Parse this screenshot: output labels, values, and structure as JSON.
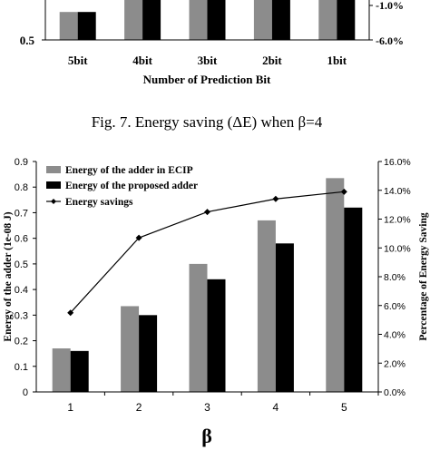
{
  "chart_data": [
    {
      "type": "bar",
      "partial": true,
      "categories": [
        "5bit",
        "4bit",
        "3bit",
        "2bit",
        "1bit"
      ],
      "xlabel": "Number of Prediction Bit",
      "y_left_visible_ticks": [
        "0.5"
      ],
      "y_right_visible_ticks": [
        "-1.0%",
        "-6.0%"
      ],
      "series": [
        {
          "color": "#8c8c8c",
          "values": [
            0.85,
            1.2,
            1.2,
            1.2,
            1.2
          ]
        },
        {
          "color": "#000000",
          "values": [
            0.85,
            1.2,
            1.2,
            1.2,
            1.2
          ]
        }
      ]
    },
    {
      "type": "bar",
      "title": "Fig. 7.   Energy saving (ΔE)   when β=4",
      "categories": [
        "1",
        "2",
        "3",
        "4",
        "5"
      ],
      "xlabel": "β",
      "ylabel": "Energy of the adder (1e-08 J)",
      "ylabel_right": "Percentage of Energy Saving",
      "ylim": [
        0,
        0.9
      ],
      "ylim_right": [
        0,
        16
      ],
      "y_ticks": [
        "0",
        "0.1",
        "0.2",
        "0.3",
        "0.4",
        "0.5",
        "0.6",
        "0.7",
        "0.8",
        "0.9"
      ],
      "y_right_ticks": [
        "0.0%",
        "2.0%",
        "4.0%",
        "6.0%",
        "8.0%",
        "10.0%",
        "12.0%",
        "14.0%",
        "16.0%"
      ],
      "legend_position": "top-left",
      "series": [
        {
          "name": "Energy of the adder in ECIP",
          "color": "#8c8c8c",
          "values": [
            0.17,
            0.335,
            0.5,
            0.67,
            0.835
          ]
        },
        {
          "name": "Energy of the proposed adder",
          "color": "#000000",
          "values": [
            0.16,
            0.3,
            0.44,
            0.58,
            0.72
          ]
        },
        {
          "name": "Energy savings",
          "type": "line",
          "axis": "right",
          "color": "#000000",
          "values": [
            5.5,
            10.7,
            12.5,
            13.4,
            13.9
          ]
        }
      ]
    }
  ]
}
